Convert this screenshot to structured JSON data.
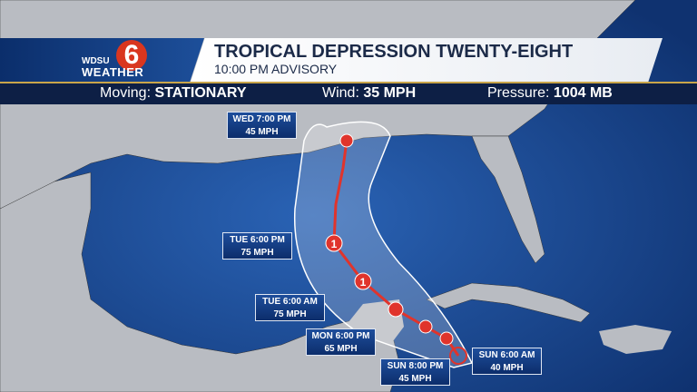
{
  "header": {
    "logo": {
      "station": "WDSU",
      "brand": "WEATHER",
      "number": "6"
    },
    "title": "TROPICAL DEPRESSION TWENTY-EIGHT",
    "subtitle": "10:00 PM ADVISORY"
  },
  "stats": [
    {
      "label": "Moving:",
      "value": "STATIONARY"
    },
    {
      "label": "Wind:",
      "value": "35 MPH"
    },
    {
      "label": "Pressure:",
      "value": "1004 MB"
    }
  ],
  "forecast_points": [
    {
      "time": "WED 7:00 PM",
      "wind": "45 MPH"
    },
    {
      "time": "TUE 6:00 PM",
      "wind": "75 MPH",
      "category": "1"
    },
    {
      "time": "TUE 6:00 AM",
      "wind": "75 MPH",
      "category": "1"
    },
    {
      "time": "MON 6:00 PM",
      "wind": "65 MPH"
    },
    {
      "time": "SUN 8:00 PM",
      "wind": "45 MPH"
    },
    {
      "time": "SUN 6:00 AM",
      "wind": "40 MPH"
    }
  ],
  "colors": {
    "ocean": "#1d4f9a",
    "land": "#b9bcc2",
    "track": "#e0342c",
    "header_navy": "#0d1f45"
  }
}
